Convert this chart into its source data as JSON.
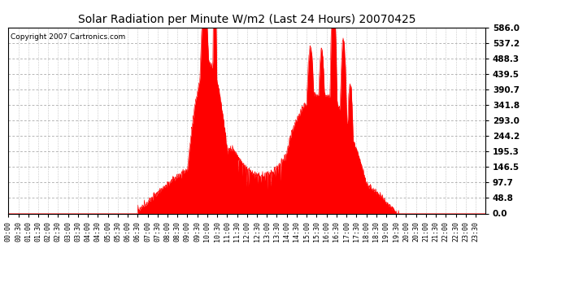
{
  "title": "Solar Radiation per Minute W/m2 (Last 24 Hours) 20070425",
  "copyright": "Copyright 2007 Cartronics.com",
  "y_max": 586.0,
  "y_ticks": [
    0.0,
    48.8,
    97.7,
    146.5,
    195.3,
    244.2,
    293.0,
    341.8,
    390.7,
    439.5,
    488.3,
    537.2,
    586.0
  ],
  "background_color": "#ffffff",
  "fill_color": "#ff0000",
  "line_color": "#ff0000",
  "grid_color": "#999999",
  "border_color": "#000000",
  "dashed_line_color": "#ff0000",
  "title_fontsize": 10,
  "copyright_fontsize": 6.5,
  "tick_fontsize": 6,
  "ytick_fontsize": 7.5
}
